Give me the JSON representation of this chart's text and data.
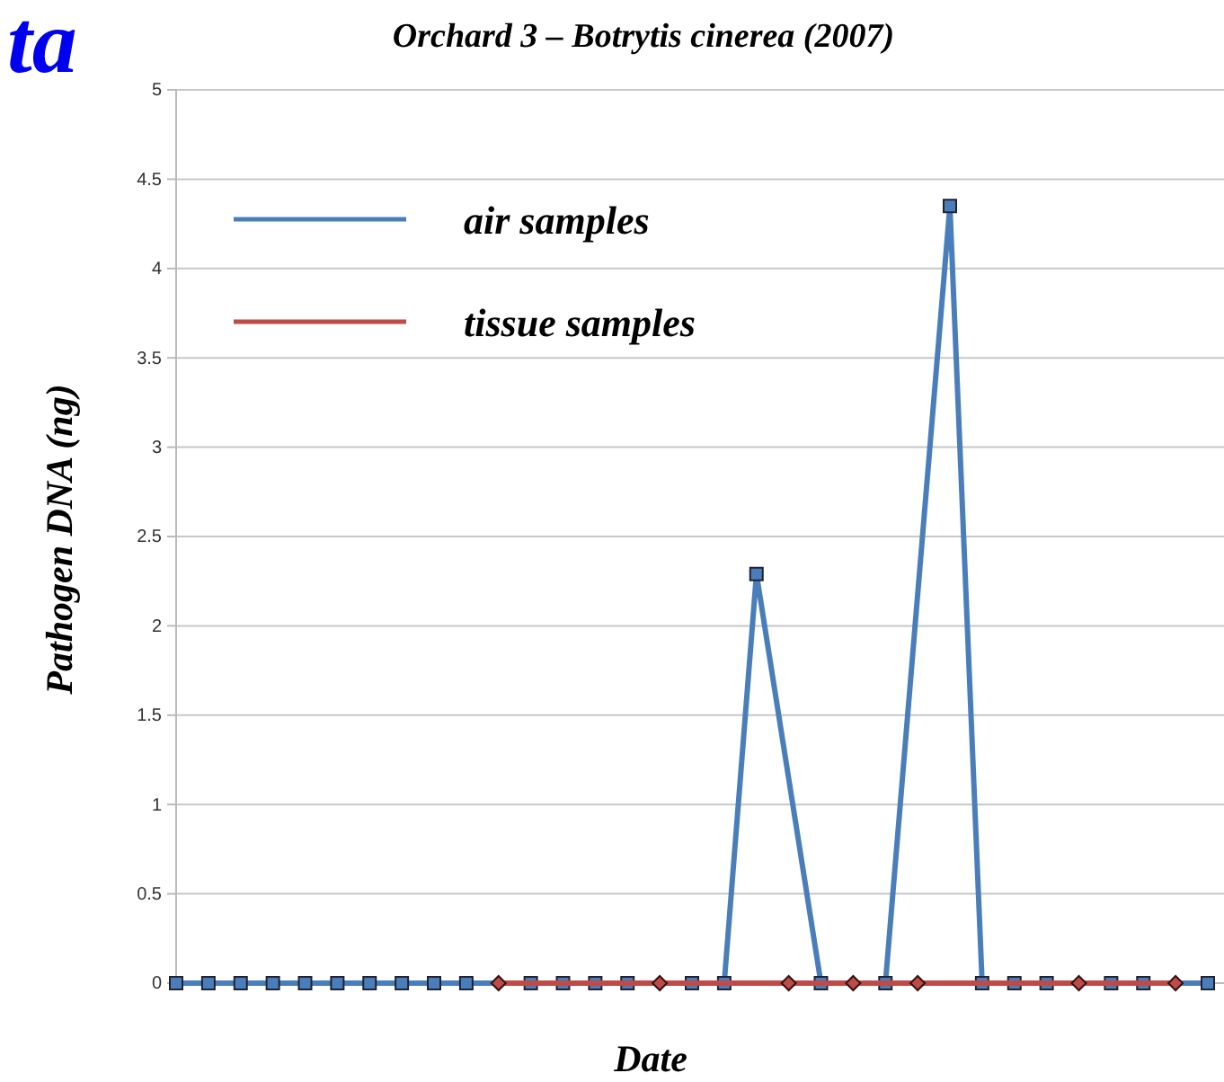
{
  "chart_data": {
    "type": "line",
    "title": "Orchard 3 – Botrytis cinerea (2007)",
    "xlabel": "Date",
    "ylabel": "Pathogen DNA (ng)",
    "annotations": [
      "ta"
    ],
    "categories": [
      null,
      null,
      null,
      null,
      null,
      null,
      null,
      null,
      null,
      null,
      null,
      null,
      null,
      null,
      null,
      null,
      null,
      null,
      null,
      null,
      null,
      null,
      null,
      null,
      null,
      null,
      null,
      null,
      null,
      null,
      null,
      null,
      null
    ],
    "series": [
      {
        "name": "air samples",
        "color": "#4a7ebb",
        "marker": "square",
        "values": [
          0,
          0,
          0,
          0,
          0,
          0,
          0,
          0,
          0,
          0,
          null,
          0,
          0,
          0,
          0,
          null,
          0,
          0,
          2.29,
          null,
          0,
          null,
          0,
          null,
          4.35,
          0,
          0,
          0,
          null,
          0,
          0,
          null,
          0
        ]
      },
      {
        "name": "tissue samples",
        "color": "#be4b48",
        "marker": "diamond",
        "values": [
          null,
          null,
          null,
          null,
          null,
          null,
          null,
          null,
          null,
          null,
          0,
          null,
          null,
          null,
          null,
          0,
          null,
          null,
          null,
          0,
          null,
          0,
          null,
          0,
          null,
          null,
          null,
          null,
          0,
          null,
          null,
          0,
          null
        ]
      }
    ],
    "ylim": [
      0,
      5
    ],
    "yticks": [
      0,
      0.5,
      1,
      1.5,
      2,
      2.5,
      3,
      3.5,
      4,
      4.5,
      5
    ],
    "grid": "y",
    "legend": "top left"
  }
}
